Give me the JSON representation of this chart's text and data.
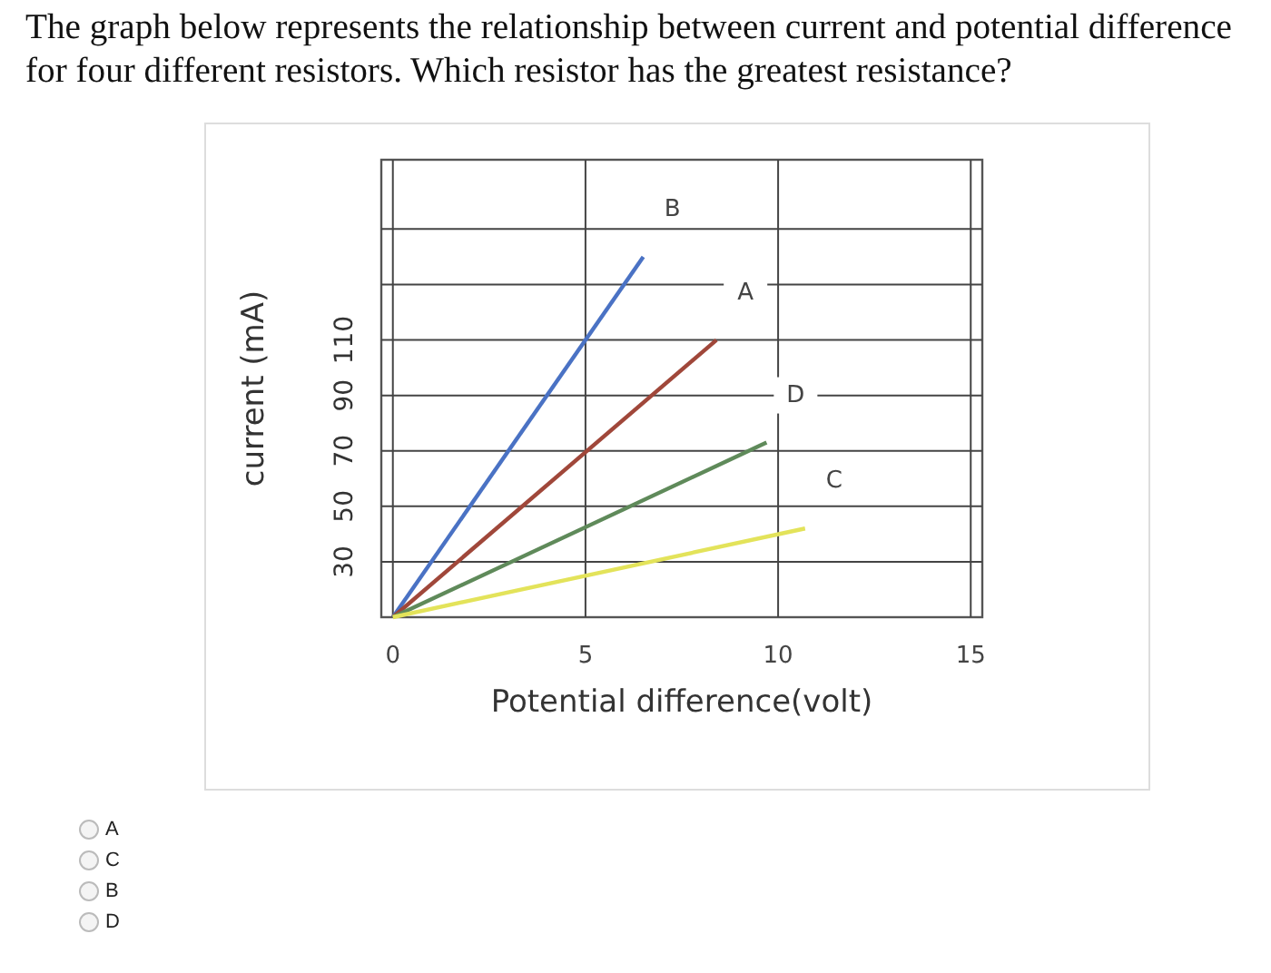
{
  "chart_data": {
    "type": "line",
    "title": "The graph below represents the relationship between current and potential difference for four different resistors. Which resistor has the greatest resistance?",
    "xlabel": "Potential difference(volt)",
    "ylabel": "current (mA)",
    "series": [
      {
        "name": "B",
        "color": "#4a72c4",
        "x": [
          0,
          6.5
        ],
        "values": [
          10,
          140
        ]
      },
      {
        "name": "A",
        "color": "#a0473a",
        "x": [
          0,
          8.4
        ],
        "values": [
          10,
          110
        ]
      },
      {
        "name": "D",
        "color": "#5f8a5a",
        "x": [
          0,
          9.7
        ],
        "values": [
          10,
          73
        ]
      },
      {
        "name": "C",
        "color": "#e3e35a",
        "x": [
          0,
          10.7
        ],
        "values": [
          10,
          42
        ]
      }
    ],
    "xlim": [
      -0.3,
      15.3
    ],
    "ylim": [
      10,
      175
    ],
    "xticks": [
      0,
      5,
      10,
      15
    ],
    "yticks": [
      30,
      50,
      70,
      90,
      110,
      {
        "value": 130,
        "label": null
      },
      {
        "value": 150,
        "label": null
      }
    ],
    "grid": true,
    "marker": "none",
    "line_style": "solid",
    "annotations": [
      "A",
      "C",
      "B",
      "D"
    ]
  }
}
